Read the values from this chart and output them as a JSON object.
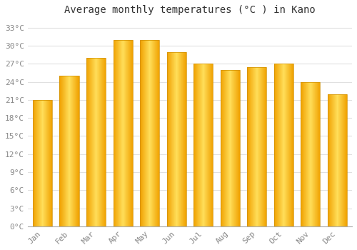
{
  "months": [
    "Jan",
    "Feb",
    "Mar",
    "Apr",
    "May",
    "Jun",
    "Jul",
    "Aug",
    "Sep",
    "Oct",
    "Nov",
    "Dec"
  ],
  "temperatures": [
    21,
    25,
    28,
    31,
    31,
    29,
    27,
    26,
    26.5,
    27,
    24,
    22
  ],
  "bar_color_center": "#FFD060",
  "bar_color_edge": "#F5A800",
  "title": "Average monthly temperatures (°C ) in Kano",
  "ytick_values": [
    0,
    3,
    6,
    9,
    12,
    15,
    18,
    21,
    24,
    27,
    30,
    33
  ],
  "ytick_labels": [
    "0°C",
    "3°C",
    "6°C",
    "9°C",
    "12°C",
    "15°C",
    "18°C",
    "21°C",
    "24°C",
    "27°C",
    "30°C",
    "33°C"
  ],
  "ylim": [
    0,
    34.5
  ],
  "background_color": "#ffffff",
  "grid_color": "#e0e0e0",
  "title_fontsize": 10,
  "tick_fontsize": 8,
  "font_family": "monospace"
}
